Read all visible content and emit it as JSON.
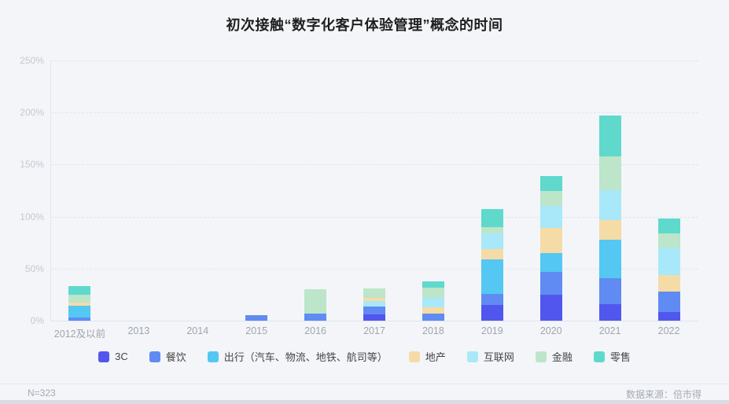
{
  "title": "初次接触“数字化客户体验管理”概念的时间",
  "footer": {
    "sample_size": "N=323",
    "source": "数据来源：倍市得"
  },
  "chart_data": {
    "type": "bar",
    "stacked": true,
    "title": "初次接触“数字化客户体验管理”概念的时间",
    "xlabel": "",
    "ylabel": "",
    "ylim": [
      0,
      250
    ],
    "yticks": [
      "0%",
      "50%",
      "100%",
      "150%",
      "200%",
      "250%"
    ],
    "grid": "dashed-horizontal",
    "legend_position": "bottom",
    "unit": "percent",
    "categories": [
      "2012及以前",
      "2013",
      "2014",
      "2015",
      "2016",
      "2017",
      "2018",
      "2019",
      "2020",
      "2021",
      "2022"
    ],
    "legend": [
      {
        "name": "3C",
        "color": "#5157ee"
      },
      {
        "name": "餐饮",
        "color": "#5f8bf2"
      },
      {
        "name": "出行（汽车、物流、地铁、航司等）",
        "color": "#54c7f2"
      },
      {
        "name": "地产",
        "color": "#f5dba6"
      },
      {
        "name": "互联网",
        "color": "#a9e8f8"
      },
      {
        "name": "金融",
        "color": "#bce5c9"
      },
      {
        "name": "零售",
        "color": "#5ed9cc"
      }
    ],
    "bars": [
      {
        "category": "2012及以前",
        "segments": [
          {
            "name": "餐饮",
            "value": 3
          },
          {
            "name": "出行（汽车、物流、地铁、航司等）",
            "value": 11
          },
          {
            "name": "地产",
            "value": 3
          },
          {
            "name": "金融",
            "value": 8
          },
          {
            "name": "零售",
            "value": 8
          }
        ]
      },
      {
        "category": "2013",
        "segments": []
      },
      {
        "category": "2014",
        "segments": []
      },
      {
        "category": "2015",
        "segments": [
          {
            "name": "餐饮",
            "value": 5
          }
        ]
      },
      {
        "category": "2016",
        "segments": [
          {
            "name": "餐饮",
            "value": 7
          },
          {
            "name": "金融",
            "value": 23
          }
        ]
      },
      {
        "category": "2017",
        "segments": [
          {
            "name": "3C",
            "value": 6
          },
          {
            "name": "餐饮",
            "value": 8
          },
          {
            "name": "互联网",
            "value": 5
          },
          {
            "name": "地产",
            "value": 3
          },
          {
            "name": "金融",
            "value": 9
          }
        ]
      },
      {
        "category": "2018",
        "segments": [
          {
            "name": "餐饮",
            "value": 7
          },
          {
            "name": "地产",
            "value": 6
          },
          {
            "name": "互联网",
            "value": 9
          },
          {
            "name": "金融",
            "value": 10
          },
          {
            "name": "零售",
            "value": 6
          }
        ]
      },
      {
        "category": "2019",
        "segments": [
          {
            "name": "3C",
            "value": 15
          },
          {
            "name": "餐饮",
            "value": 11
          },
          {
            "name": "出行（汽车、物流、地铁、航司等）",
            "value": 33
          },
          {
            "name": "地产",
            "value": 10
          },
          {
            "name": "互联网",
            "value": 15
          },
          {
            "name": "金融",
            "value": 6
          },
          {
            "name": "零售",
            "value": 17
          }
        ]
      },
      {
        "category": "2020",
        "segments": [
          {
            "name": "3C",
            "value": 25
          },
          {
            "name": "餐饮",
            "value": 22
          },
          {
            "name": "出行（汽车、物流、地铁、航司等）",
            "value": 18
          },
          {
            "name": "地产",
            "value": 24
          },
          {
            "name": "互联网",
            "value": 21
          },
          {
            "name": "金融",
            "value": 15
          },
          {
            "name": "零售",
            "value": 14
          }
        ]
      },
      {
        "category": "2021",
        "segments": [
          {
            "name": "3C",
            "value": 16
          },
          {
            "name": "餐饮",
            "value": 25
          },
          {
            "name": "出行（汽车、物流、地铁、航司等）",
            "value": 37
          },
          {
            "name": "地产",
            "value": 19
          },
          {
            "name": "互联网",
            "value": 28
          },
          {
            "name": "金融",
            "value": 33
          },
          {
            "name": "零售",
            "value": 39
          }
        ]
      },
      {
        "category": "2022",
        "segments": [
          {
            "name": "3C",
            "value": 8
          },
          {
            "name": "餐饮",
            "value": 20
          },
          {
            "name": "地产",
            "value": 16
          },
          {
            "name": "互联网",
            "value": 26
          },
          {
            "name": "金融",
            "value": 14
          },
          {
            "name": "零售",
            "value": 14
          }
        ]
      }
    ]
  }
}
